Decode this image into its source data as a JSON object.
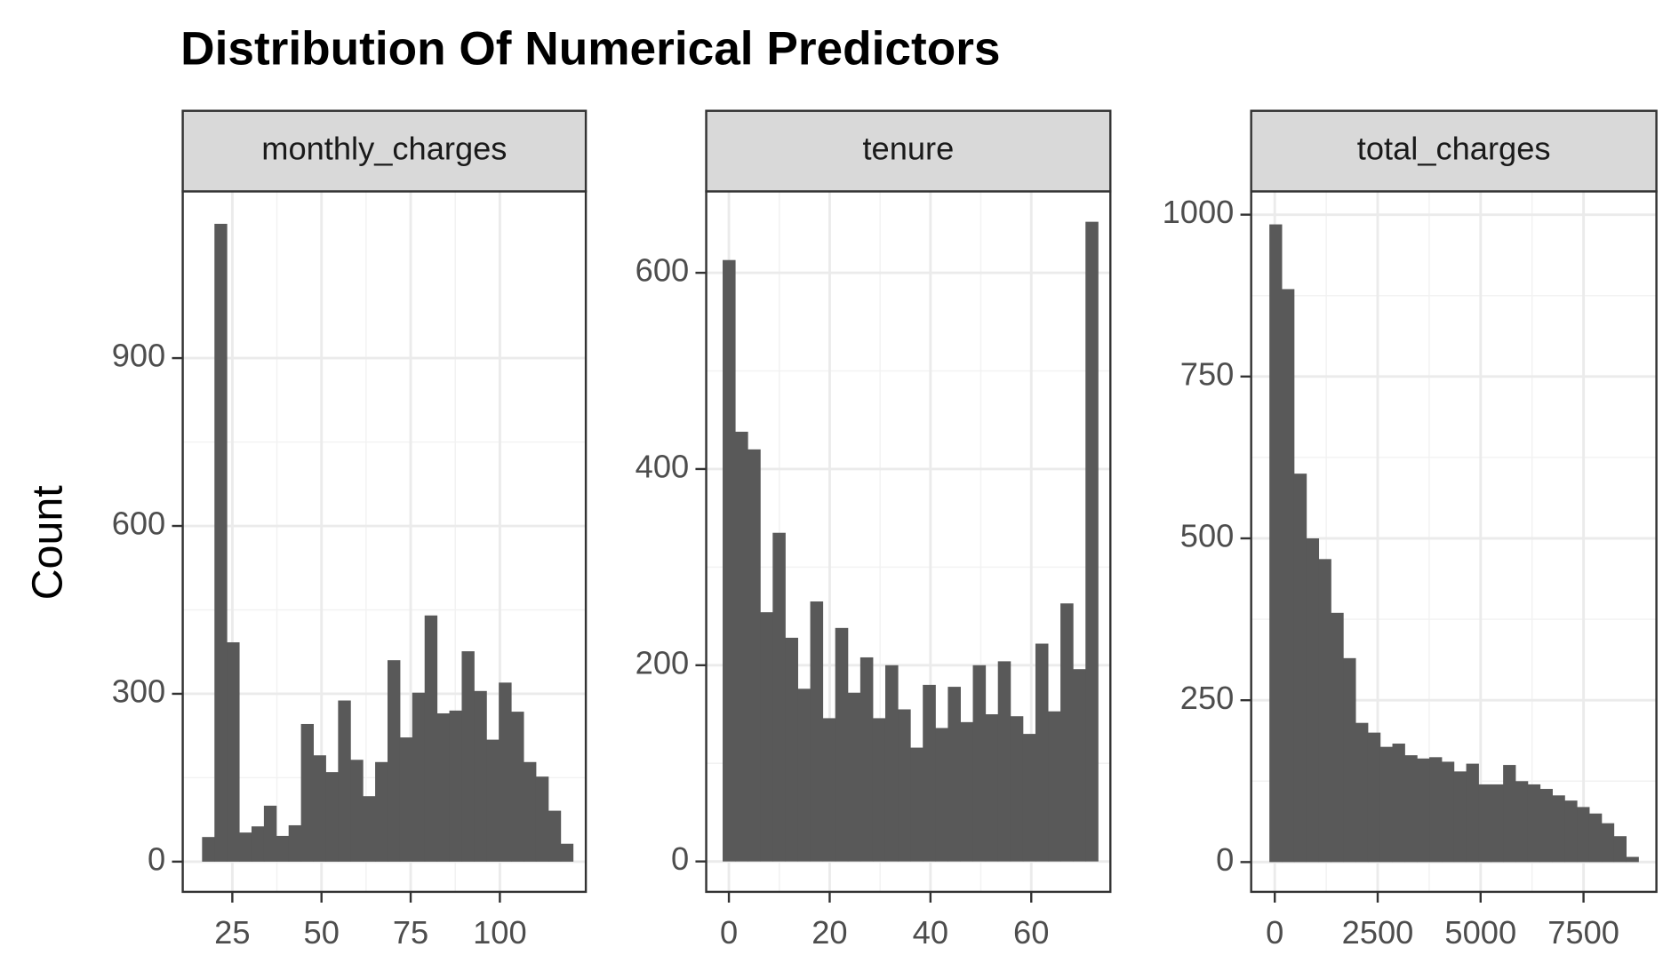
{
  "title": "Distribution Of Numerical Predictors",
  "y_label": "Count",
  "chart_data": [
    {
      "type": "histogram",
      "strip": "monthly_charges",
      "color": "#595959",
      "grid": true,
      "bins": [
        16.52,
        19.99,
        23.45,
        26.92,
        30.38,
        33.85,
        37.32,
        40.78,
        44.25,
        47.71,
        51.18,
        54.65,
        58.11,
        61.58,
        65.04,
        68.51,
        71.98,
        75.44,
        78.91,
        82.37,
        85.84,
        89.31,
        92.77,
        96.24,
        99.7,
        103.17,
        106.64,
        110.1,
        113.57,
        117.03,
        120.5
      ],
      "values": [
        44,
        1140,
        392,
        52,
        63,
        100,
        46,
        65,
        246,
        190,
        160,
        288,
        182,
        117,
        178,
        360,
        222,
        302,
        440,
        265,
        270,
        376,
        305,
        218,
        320,
        268,
        178,
        152,
        91,
        32
      ],
      "xlim": [
        11.1,
        124.1
      ],
      "xticks": [
        25,
        50,
        75,
        100
      ],
      "ylim": [
        -54,
        1198
      ],
      "yticks": [
        0,
        300,
        600,
        900
      ]
    },
    {
      "type": "histogram",
      "strip": "tenure",
      "color": "#595959",
      "grid": true,
      "bins": [
        -1.24,
        1.24,
        3.72,
        6.21,
        8.69,
        11.17,
        13.66,
        16.14,
        18.62,
        21.1,
        23.59,
        26.07,
        28.55,
        31.03,
        33.52,
        36.0,
        38.48,
        40.97,
        43.45,
        45.93,
        48.41,
        50.9,
        53.38,
        55.86,
        58.34,
        60.83,
        63.31,
        65.79,
        68.28,
        70.76,
        73.24
      ],
      "values": [
        613,
        438,
        420,
        254,
        335,
        228,
        176,
        265,
        146,
        238,
        172,
        208,
        146,
        200,
        155,
        116,
        180,
        136,
        178,
        142,
        200,
        150,
        204,
        148,
        130,
        222,
        153,
        263,
        196,
        652
      ],
      "xlim": [
        -4.5,
        75.7
      ],
      "xticks": [
        0,
        20,
        40,
        60
      ],
      "ylim": [
        -31,
        683
      ],
      "yticks": [
        0,
        200,
        400,
        600
      ]
    },
    {
      "type": "histogram",
      "strip": "total_charges",
      "color": "#595959",
      "grid": true,
      "bins": [
        -131,
        168,
        467,
        766,
        1065,
        1363,
        1662,
        1961,
        2260,
        2559,
        2857,
        3156,
        3455,
        3754,
        4053,
        4351,
        4650,
        4949,
        5248,
        5547,
        5845,
        6144,
        6443,
        6742,
        7041,
        7339,
        7638,
        7937,
        8236,
        8535,
        8834
      ],
      "values": [
        985,
        885,
        600,
        500,
        468,
        385,
        315,
        215,
        200,
        178,
        183,
        165,
        160,
        162,
        155,
        140,
        152,
        120,
        120,
        150,
        125,
        120,
        113,
        103,
        95,
        85,
        75,
        60,
        40,
        8
      ],
      "xlim": [
        -573,
        9271
      ],
      "xticks": [
        0,
        2500,
        5000,
        7500
      ],
      "ylim": [
        -46,
        1036
      ],
      "yticks": [
        0,
        250,
        500,
        750,
        1000
      ]
    }
  ]
}
